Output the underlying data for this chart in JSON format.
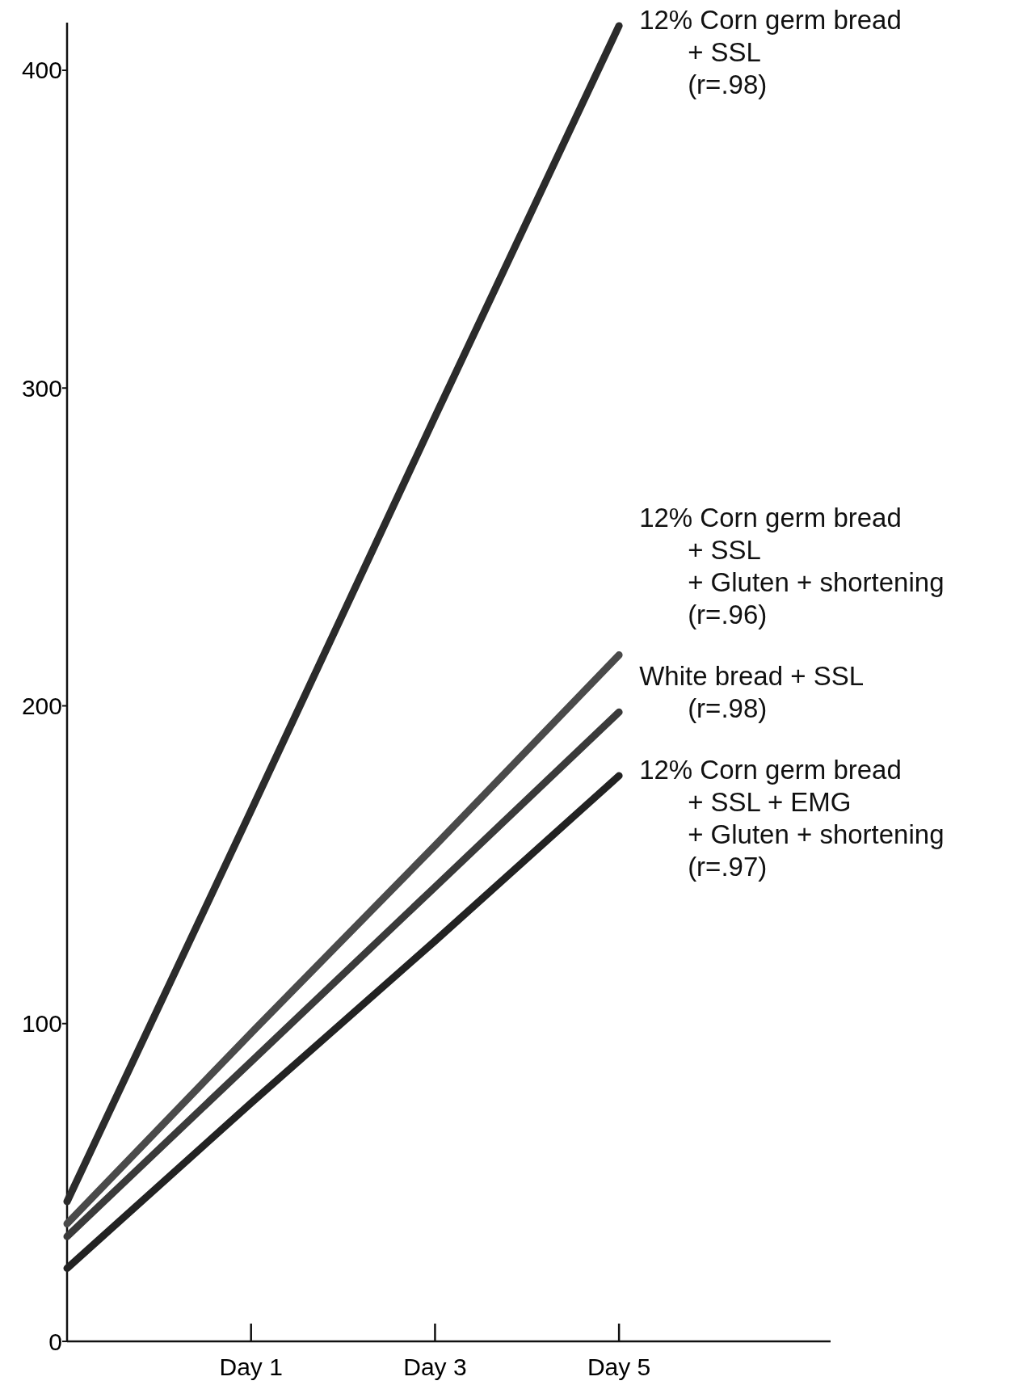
{
  "chart_data": {
    "type": "line",
    "categories": [
      null,
      "Day 1",
      "Day 3",
      "Day 5"
    ],
    "ylim": [
      0,
      415
    ],
    "yticks": [
      0,
      100,
      200,
      300,
      400
    ],
    "marker": "none",
    "line_style": "solid",
    "series": [
      {
        "name": "12% Corn germ bread\n+ SSL\n(r=.98)",
        "color": "#2b2b2b",
        "values": [
          44,
          167,
          291,
          414
        ]
      },
      {
        "name": "12% Corn germ bread\n+ SSL\n+ Gluten + shortening\n(r=.96)",
        "color": "#4a4a4a",
        "values": [
          37,
          97,
          156,
          216
        ]
      },
      {
        "name": "White bread + SSL\n(r=.98)",
        "color": "#3a3a3a",
        "values": [
          33,
          88,
          143,
          198
        ]
      },
      {
        "name": "12% Corn germ bread\n+ SSL + EMG\n+ Gluten + shortening\n(r=.97)",
        "color": "#222222",
        "values": [
          23,
          75,
          126,
          178
        ]
      }
    ]
  }
}
